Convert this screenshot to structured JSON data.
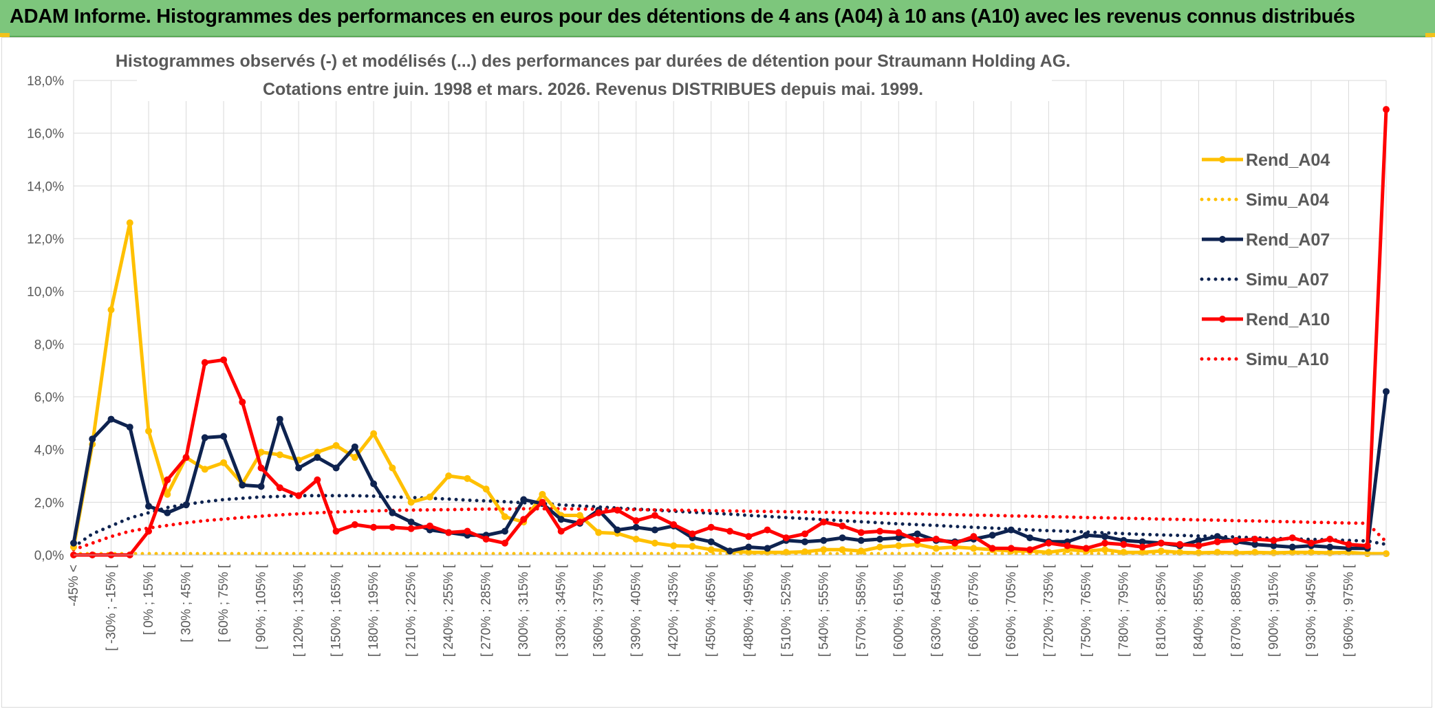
{
  "banner": {
    "title": "ADAM Informe. Histogrammes des performances en euros pour des détentions de 4 ans (A04) à 10 ans (A10) avec les revenus connus distribués"
  },
  "chart_data": {
    "type": "line",
    "title": "Histogrammes observés (-) et modélisés (...) des performances par durées de détention pour Straumann Holding AG.",
    "subtitle": "Cotations entre juin. 1998 et mars. 2026.  Revenus DISTRIBUES depuis mai. 1999.",
    "xlabel": "",
    "ylabel": "",
    "ylim": [
      0,
      18
    ],
    "y_ticks": [
      "0,0%",
      "2,0%",
      "4,0%",
      "6,0%",
      "8,0%",
      "10,0%",
      "12,0%",
      "14,0%",
      "16,0%",
      "18,0%"
    ],
    "grid": true,
    "legend_position": "right",
    "x_tick_labels": [
      "-45% <",
      "[ -30% ; -15% [",
      "[ 0% ; 15% [",
      "[ 30% ; 45% [",
      "[ 60% ; 75% [",
      "[ 90% ; 105% [",
      "[ 120% ; 135% [",
      "[ 150% ; 165% [",
      "[ 180% ; 195% [",
      "[ 210% ; 225% [",
      "[ 240% ; 255% [",
      "[ 270% ; 285% [",
      "[ 300% ; 315% [",
      "[ 330% ; 345% [",
      "[ 360% ; 375% [",
      "[ 390% ; 405% [",
      "[ 420% ; 435% [",
      "[ 450% ; 465% [",
      "[ 480% ; 495% [",
      "[ 510% ; 525% [",
      "[ 540% ; 555% [",
      "[ 570% ; 585% [",
      "[ 600% ; 615% [",
      "[ 630% ; 645% [",
      "[ 660% ; 675% [",
      "[ 690% ; 705% [",
      "[ 720% ; 735% [",
      "[ 750% ; 765% [",
      "[ 780% ; 795% [",
      "[ 810% ; 825% [",
      "[ 840% ; 855% [",
      "[ 870% ; 885% [",
      "[ 900% ; 915% [",
      "[ 930% ; 945% [",
      "[ 960% ; 975% ["
    ],
    "n_points": 71,
    "series": [
      {
        "name": "Rend_A04",
        "style": "solid",
        "color": "#FFC000",
        "values": [
          0.3,
          4.2,
          9.3,
          12.6,
          4.7,
          2.3,
          3.7,
          3.25,
          3.5,
          2.7,
          3.9,
          3.8,
          3.6,
          3.9,
          4.15,
          3.7,
          4.6,
          3.3,
          2.0,
          2.2,
          3.0,
          2.9,
          2.5,
          1.45,
          1.25,
          2.3,
          1.5,
          1.5,
          0.85,
          0.82,
          0.6,
          0.45,
          0.35,
          0.33,
          0.2,
          0.15,
          0.1,
          0.1,
          0.1,
          0.12,
          0.2,
          0.2,
          0.15,
          0.3,
          0.35,
          0.4,
          0.25,
          0.3,
          0.25,
          0.2,
          0.15,
          0.15,
          0.1,
          0.2,
          0.15,
          0.2,
          0.1,
          0.1,
          0.15,
          0.1,
          0.08,
          0.1,
          0.08,
          0.1,
          0.08,
          0.1,
          0.1,
          0.08,
          0.1,
          0.05,
          0.05
        ]
      },
      {
        "name": "Simu_A04",
        "style": "dotted",
        "color": "#FFC000",
        "values": [
          0.05,
          0.05,
          0.05,
          0.05,
          0.05,
          0.05,
          0.05,
          0.05,
          0.05,
          0.05,
          0.05,
          0.05,
          0.05,
          0.05,
          0.05,
          0.05,
          0.05,
          0.05,
          0.05,
          0.05,
          0.05,
          0.05,
          0.05,
          0.05,
          0.05,
          0.05,
          0.05,
          0.05,
          0.05,
          0.05,
          0.05,
          0.05,
          0.05,
          0.05,
          0.05,
          0.05,
          0.05,
          0.05,
          0.05,
          0.05,
          0.05,
          0.05,
          0.05,
          0.05,
          0.05,
          0.05,
          0.05,
          0.05,
          0.05,
          0.05,
          0.05,
          0.05,
          0.05,
          0.05,
          0.05,
          0.05,
          0.05,
          0.05,
          0.05,
          0.05,
          0.05,
          0.05,
          0.05,
          0.05,
          0.05,
          0.05,
          0.05,
          0.05,
          0.05,
          0.05,
          0.05
        ]
      },
      {
        "name": "Rend_A07",
        "style": "solid",
        "color": "#0E2350",
        "values": [
          0.45,
          4.4,
          5.15,
          4.85,
          1.85,
          1.6,
          1.9,
          4.45,
          4.5,
          2.65,
          2.6,
          5.15,
          3.3,
          3.7,
          3.3,
          4.1,
          2.7,
          1.6,
          1.25,
          0.95,
          0.85,
          0.75,
          0.75,
          0.9,
          2.1,
          1.95,
          1.35,
          1.2,
          1.7,
          0.95,
          1.05,
          0.95,
          1.1,
          0.65,
          0.5,
          0.15,
          0.3,
          0.25,
          0.55,
          0.5,
          0.55,
          0.65,
          0.55,
          0.6,
          0.65,
          0.8,
          0.55,
          0.5,
          0.6,
          0.75,
          0.95,
          0.65,
          0.5,
          0.5,
          0.75,
          0.7,
          0.55,
          0.5,
          0.45,
          0.35,
          0.55,
          0.7,
          0.5,
          0.4,
          0.35,
          0.3,
          0.35,
          0.3,
          0.25,
          0.25,
          6.2
        ]
      },
      {
        "name": "Simu_A07",
        "style": "dotted",
        "color": "#0E2350",
        "values": [
          0.3,
          0.8,
          1.1,
          1.4,
          1.6,
          1.8,
          1.92,
          2.02,
          2.1,
          2.15,
          2.2,
          2.22,
          2.25,
          2.25,
          2.25,
          2.25,
          2.23,
          2.2,
          2.18,
          2.15,
          2.12,
          2.08,
          2.05,
          2.02,
          1.98,
          1.95,
          1.9,
          1.86,
          1.82,
          1.78,
          1.74,
          1.7,
          1.66,
          1.62,
          1.58,
          1.55,
          1.5,
          1.46,
          1.42,
          1.38,
          1.34,
          1.3,
          1.26,
          1.22,
          1.18,
          1.15,
          1.12,
          1.08,
          1.05,
          1.02,
          0.98,
          0.95,
          0.92,
          0.9,
          0.87,
          0.84,
          0.81,
          0.78,
          0.76,
          0.74,
          0.72,
          0.7,
          0.68,
          0.65,
          0.63,
          0.61,
          0.59,
          0.57,
          0.55,
          0.53,
          0.4
        ]
      },
      {
        "name": "Rend_A10",
        "style": "solid",
        "color": "#FF0000",
        "values": [
          0.0,
          0.0,
          0.0,
          0.0,
          0.9,
          2.85,
          3.7,
          7.3,
          7.4,
          5.8,
          3.3,
          2.55,
          2.25,
          2.85,
          0.9,
          1.15,
          1.05,
          1.05,
          1.0,
          1.1,
          0.85,
          0.9,
          0.6,
          0.45,
          1.35,
          2.0,
          0.9,
          1.25,
          1.6,
          1.7,
          1.3,
          1.5,
          1.15,
          0.8,
          1.05,
          0.9,
          0.7,
          0.95,
          0.65,
          0.8,
          1.25,
          1.1,
          0.85,
          0.9,
          0.85,
          0.55,
          0.6,
          0.45,
          0.7,
          0.25,
          0.25,
          0.2,
          0.45,
          0.35,
          0.25,
          0.45,
          0.4,
          0.3,
          0.45,
          0.4,
          0.35,
          0.5,
          0.55,
          0.6,
          0.55,
          0.65,
          0.45,
          0.6,
          0.4,
          0.35,
          16.9
        ]
      },
      {
        "name": "Simu_A10",
        "style": "dotted",
        "color": "#FF0000",
        "values": [
          0.2,
          0.45,
          0.7,
          0.9,
          1.02,
          1.12,
          1.22,
          1.3,
          1.36,
          1.42,
          1.47,
          1.52,
          1.56,
          1.6,
          1.63,
          1.65,
          1.67,
          1.69,
          1.7,
          1.71,
          1.72,
          1.73,
          1.74,
          1.74,
          1.75,
          1.75,
          1.75,
          1.74,
          1.74,
          1.73,
          1.72,
          1.71,
          1.7,
          1.69,
          1.68,
          1.67,
          1.66,
          1.65,
          1.64,
          1.63,
          1.62,
          1.61,
          1.6,
          1.58,
          1.57,
          1.56,
          1.54,
          1.53,
          1.51,
          1.5,
          1.48,
          1.47,
          1.45,
          1.44,
          1.42,
          1.41,
          1.39,
          1.38,
          1.36,
          1.35,
          1.33,
          1.32,
          1.3,
          1.29,
          1.27,
          1.26,
          1.24,
          1.23,
          1.21,
          1.2,
          0.5
        ]
      }
    ]
  }
}
